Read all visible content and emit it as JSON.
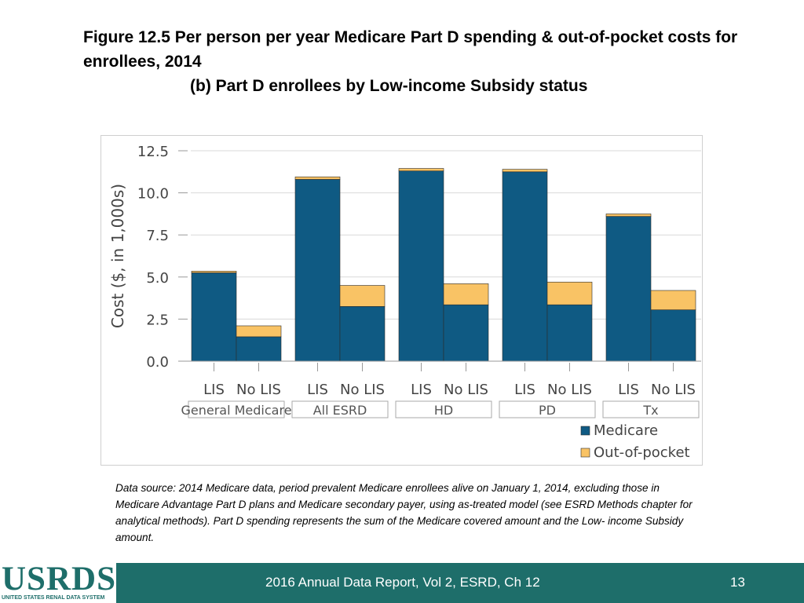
{
  "slide": {
    "title_line1": "Figure 12.5 Per person per year Medicare Part D spending & out-of-pocket costs for enrollees, 2014",
    "title_line2": "(b) Part D enrollees by Low-income Subsidy status",
    "data_source": "Data source: 2014 Medicare data, period prevalent Medicare enrollees alive on January 1, 2014, excluding those in Medicare Advantage Part D plans and Medicare secondary payer, using as-treated model (see ESRD Methods chapter for analytical methods). Part D spending represents the sum of the Medicare covered amount and the Low- income Subsidy amount."
  },
  "footer": {
    "logo_text": "USRDS",
    "logo_subtext": "UNITED STATES RENAL DATA SYSTEM",
    "report": "2016 Annual Data Report, Vol 2, ESRD, Ch 12",
    "page": "13",
    "color": "#1e6e6a"
  },
  "chart_data": {
    "type": "bar",
    "stacked": true,
    "ylabel": "Cost ($, in 1,000s)",
    "ylim": [
      0,
      12.5
    ],
    "yticks": [
      "0.0",
      "2.5",
      "5.0",
      "7.5",
      "10.0",
      "12.5"
    ],
    "grid": true,
    "groups": [
      {
        "label": "General Medicare",
        "categories": [
          "LIS",
          "No LIS"
        ]
      },
      {
        "label": "All ESRD",
        "categories": [
          "LIS",
          "No LIS"
        ]
      },
      {
        "label": "HD",
        "categories": [
          "LIS",
          "No LIS"
        ]
      },
      {
        "label": "PD",
        "categories": [
          "LIS",
          "No LIS"
        ]
      },
      {
        "label": "Tx",
        "categories": [
          "LIS",
          "No LIS"
        ]
      }
    ],
    "series": [
      {
        "name": "Medicare",
        "color": "#0f5a83",
        "values": [
          5.25,
          1.45,
          10.8,
          3.25,
          11.3,
          3.35,
          11.25,
          3.35,
          8.6,
          3.05
        ]
      },
      {
        "name": "Out-of-pocket",
        "color": "#f9c365",
        "values": [
          0.1,
          0.65,
          0.15,
          1.25,
          0.15,
          1.25,
          0.15,
          1.35,
          0.15,
          1.15
        ]
      }
    ],
    "legend_position": "bottom-right"
  }
}
